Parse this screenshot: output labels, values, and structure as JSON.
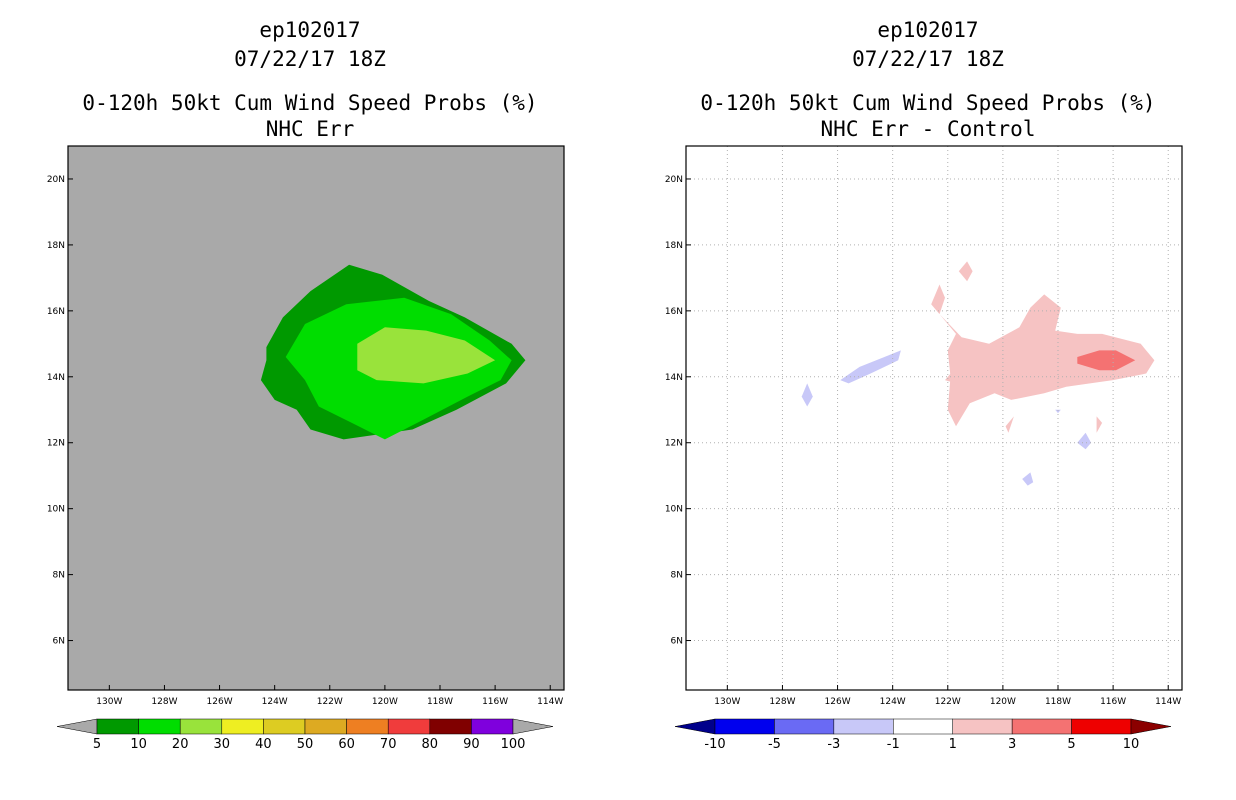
{
  "left_panel": {
    "title_line1": "ep102017",
    "title_line2": "07/22/17 18Z",
    "subtitle_line1": "0-120h 50kt Cum Wind Speed Probs (%)",
    "subtitle_line2": "NHC Err"
  },
  "right_panel": {
    "title_line1": "ep102017",
    "title_line2": "07/22/17 18Z",
    "subtitle_line1": "0-120h 50kt Cum Wind Speed Probs (%)",
    "subtitle_line2": "NHC Err - Control"
  },
  "chart_data": [
    {
      "type": "heatmap",
      "name": "NHC Err",
      "background_color": "#a9a9a9",
      "xlim": [
        -131.5,
        -113.5
      ],
      "ylim": [
        4.5,
        21
      ],
      "x_ticks": [
        -130,
        -128,
        -126,
        -124,
        -122,
        -120,
        -118,
        -116,
        -114
      ],
      "x_tick_labels": [
        "130W",
        "128W",
        "126W",
        "124W",
        "122W",
        "120W",
        "118W",
        "116W",
        "114W"
      ],
      "y_ticks": [
        6,
        8,
        10,
        12,
        14,
        16,
        18,
        20
      ],
      "y_tick_labels": [
        "6N",
        "8N",
        "10N",
        "12N",
        "14N",
        "16N",
        "18N",
        "20N"
      ],
      "grid": false,
      "contours": [
        {
          "level": "5-10",
          "color": "#009900",
          "points": [
            [
              -124.3,
              14.9
            ],
            [
              -123.7,
              15.8
            ],
            [
              -122.7,
              16.6
            ],
            [
              -121.3,
              17.4
            ],
            [
              -120.1,
              17.1
            ],
            [
              -118.4,
              16.3
            ],
            [
              -117.1,
              15.8
            ],
            [
              -115.4,
              15.0
            ],
            [
              -114.9,
              14.5
            ],
            [
              -115.6,
              13.8
            ],
            [
              -117.4,
              13.0
            ],
            [
              -119.0,
              12.4
            ],
            [
              -121.5,
              12.1
            ],
            [
              -122.7,
              12.4
            ],
            [
              -123.2,
              13.0
            ],
            [
              -124.0,
              13.3
            ],
            [
              -124.5,
              13.9
            ],
            [
              -124.3,
              14.5
            ]
          ]
        },
        {
          "level": "10-20",
          "color": "#00dd00",
          "points": [
            [
              -123.6,
              14.6
            ],
            [
              -122.9,
              15.6
            ],
            [
              -121.4,
              16.2
            ],
            [
              -119.3,
              16.4
            ],
            [
              -117.6,
              15.9
            ],
            [
              -116.2,
              15.1
            ],
            [
              -115.4,
              14.5
            ],
            [
              -115.8,
              13.9
            ],
            [
              -117.0,
              13.4
            ],
            [
              -118.6,
              12.7
            ],
            [
              -120.0,
              12.1
            ],
            [
              -121.2,
              12.6
            ],
            [
              -122.4,
              13.1
            ],
            [
              -122.9,
              13.9
            ]
          ]
        },
        {
          "level": "20-30",
          "color": "#99e33b",
          "points": [
            [
              -121.0,
              15.0
            ],
            [
              -120.0,
              15.5
            ],
            [
              -118.5,
              15.4
            ],
            [
              -117.1,
              15.1
            ],
            [
              -116.0,
              14.5
            ],
            [
              -117.0,
              14.1
            ],
            [
              -118.6,
              13.8
            ],
            [
              -120.3,
              13.9
            ],
            [
              -121.0,
              14.2
            ]
          ]
        }
      ],
      "colorbar": {
        "labels": [
          "5",
          "10",
          "20",
          "30",
          "40",
          "50",
          "60",
          "70",
          "80",
          "90",
          "100"
        ],
        "colors": [
          "#009900",
          "#00dd00",
          "#99e33b",
          "#eeee22",
          "#ddcc22",
          "#ddaa22",
          "#ee7f22",
          "#f03c3c",
          "#800000",
          "#7f00dd"
        ],
        "under_color": "#a9a9a9",
        "over_color": "#a9a9a9"
      }
    },
    {
      "type": "heatmap",
      "name": "NHC Err - Control",
      "background_color": "#ffffff",
      "xlim": [
        -131.5,
        -113.5
      ],
      "ylim": [
        4.5,
        21
      ],
      "x_ticks": [
        -130,
        -128,
        -126,
        -124,
        -122,
        -120,
        -118,
        -116,
        -114
      ],
      "x_tick_labels": [
        "130W",
        "128W",
        "126W",
        "124W",
        "122W",
        "120W",
        "118W",
        "116W",
        "114W"
      ],
      "y_ticks": [
        6,
        8,
        10,
        12,
        14,
        16,
        18,
        20
      ],
      "y_tick_labels": [
        "6N",
        "8N",
        "10N",
        "12N",
        "14N",
        "16N",
        "18N",
        "20N"
      ],
      "grid": true,
      "contours": [
        {
          "level": "1-3",
          "color": "#f6c3c3",
          "points": [
            [
              -122.3,
              15.9
            ],
            [
              -121.5,
              15.2
            ],
            [
              -120.5,
              15.0
            ],
            [
              -119.4,
              15.5
            ],
            [
              -119.0,
              16.1
            ],
            [
              -118.5,
              16.5
            ],
            [
              -117.9,
              16.1
            ],
            [
              -118.1,
              15.4
            ],
            [
              -117.3,
              15.3
            ],
            [
              -116.4,
              15.3
            ],
            [
              -115.0,
              15.0
            ],
            [
              -114.5,
              14.5
            ],
            [
              -114.8,
              14.1
            ],
            [
              -116.0,
              13.9
            ],
            [
              -117.7,
              13.7
            ],
            [
              -118.5,
              13.5
            ],
            [
              -119.7,
              13.3
            ],
            [
              -120.3,
              13.5
            ],
            [
              -121.2,
              13.2
            ],
            [
              -121.7,
              12.5
            ],
            [
              -122.0,
              13.0
            ],
            [
              -121.9,
              14.0
            ],
            [
              -122.0,
              14.8
            ],
            [
              -121.7,
              15.3
            ]
          ]
        },
        {
          "level": "1-3",
          "color": "#f6c3c3",
          "points": [
            [
              -122.1,
              13.9
            ],
            [
              -121.8,
              14.2
            ],
            [
              -121.7,
              13.8
            ]
          ]
        },
        {
          "level": "1-3",
          "color": "#f6c3c3",
          "points": [
            [
              -121.6,
              17.2
            ],
            [
              -121.3,
              17.5
            ],
            [
              -121.1,
              17.2
            ],
            [
              -121.3,
              16.9
            ]
          ]
        },
        {
          "level": "1-3",
          "color": "#f6c3c3",
          "points": [
            [
              -122.6,
              16.2
            ],
            [
              -122.3,
              16.8
            ],
            [
              -122.1,
              16.4
            ],
            [
              -122.3,
              15.9
            ]
          ]
        },
        {
          "level": "1-3",
          "color": "#f6c3c3",
          "points": [
            [
              -119.9,
              12.5
            ],
            [
              -119.6,
              12.8
            ],
            [
              -119.8,
              12.3
            ]
          ]
        },
        {
          "level": "1-3",
          "color": "#f6c3c3",
          "points": [
            [
              -116.6,
              12.8
            ],
            [
              -116.4,
              12.6
            ],
            [
              -116.6,
              12.3
            ]
          ]
        },
        {
          "level": "3-5",
          "color": "#f47272",
          "points": [
            [
              -117.3,
              14.6
            ],
            [
              -116.5,
              14.8
            ],
            [
              -115.9,
              14.8
            ],
            [
              -115.2,
              14.5
            ],
            [
              -115.9,
              14.2
            ],
            [
              -116.5,
              14.2
            ],
            [
              -117.3,
              14.4
            ]
          ]
        },
        {
          "level": "-3--1",
          "color": "#c8c8f8",
          "points": [
            [
              -125.9,
              13.9
            ],
            [
              -125.2,
              14.3
            ],
            [
              -124.3,
              14.6
            ],
            [
              -123.7,
              14.8
            ],
            [
              -123.8,
              14.5
            ],
            [
              -124.8,
              14.1
            ],
            [
              -125.6,
              13.8
            ]
          ]
        },
        {
          "level": "-3--1",
          "color": "#c8c8f8",
          "points": [
            [
              -127.3,
              13.4
            ],
            [
              -127.1,
              13.8
            ],
            [
              -126.9,
              13.4
            ],
            [
              -127.1,
              13.1
            ]
          ]
        },
        {
          "level": "-3--1",
          "color": "#c8c8f8",
          "points": [
            [
              -117.3,
              12.0
            ],
            [
              -117.0,
              12.3
            ],
            [
              -116.8,
              12.0
            ],
            [
              -117.0,
              11.8
            ]
          ]
        },
        {
          "level": "-3--1",
          "color": "#c8c8f8",
          "points": [
            [
              -119.3,
              10.9
            ],
            [
              -119.0,
              11.1
            ],
            [
              -118.9,
              10.8
            ],
            [
              -119.1,
              10.7
            ]
          ]
        },
        {
          "level": "-3--1",
          "color": "#c8c8f8",
          "points": [
            [
              -118.1,
              13.0
            ],
            [
              -117.9,
              13.0
            ],
            [
              -118.0,
              12.9
            ]
          ]
        }
      ],
      "colorbar": {
        "labels": [
          "-10",
          "-5",
          "-3",
          "-1",
          "1",
          "3",
          "5",
          "10"
        ],
        "colors": [
          "#0000ee",
          "#6a6af4",
          "#c8c8f8",
          "#ffffff",
          "#f6c3c3",
          "#f47272",
          "#ee0000"
        ],
        "under_color": "#00008b",
        "over_color": "#8b0000"
      }
    }
  ]
}
